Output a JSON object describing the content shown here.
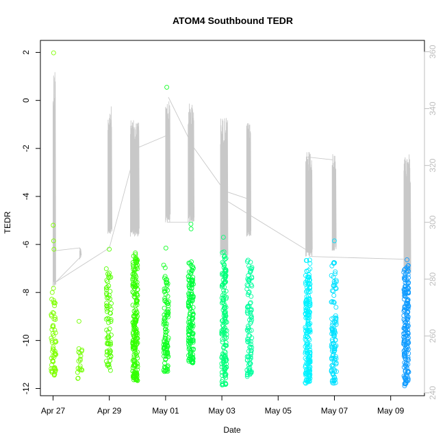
{
  "chart_data": {
    "type": "scatter",
    "title": "ATOM4 Southbound TEDR",
    "xlabel": "Date",
    "ylabel": "TEDR",
    "x_ticks": [
      "Apr 27",
      "Apr 29",
      "May 01",
      "May 03",
      "May 05",
      "May 07",
      "May 09"
    ],
    "x_tick_days": [
      0,
      2,
      4,
      6,
      8,
      10,
      12
    ],
    "xlim_days": [
      -0.45,
      13.2
    ],
    "y_ticks": [
      "-12",
      "-10",
      "-8",
      "-6",
      "-4",
      "-2",
      "0",
      "2"
    ],
    "y_tick_values": [
      -12,
      -10,
      -8,
      -6,
      -4,
      -2,
      0,
      2
    ],
    "ylim": [
      -12.3,
      2.5
    ],
    "y2_ticks": [
      "240",
      "260",
      "280",
      "300",
      "320",
      "340",
      "360"
    ],
    "y2_tick_values": [
      240,
      260,
      280,
      300,
      320,
      340,
      360
    ],
    "y2lim": [
      239,
      364
    ],
    "secondary_line_color": "#c8c8c8",
    "right_axis_color": "#bdbdbd",
    "point_groups": [
      {
        "day": 0.02,
        "color": "#7fff00",
        "count": 60,
        "min": -11.5,
        "max": -7.8,
        "outliers": [
          1.98,
          -5.2,
          -5.85,
          -6.2
        ]
      },
      {
        "day": 0.95,
        "color": "#72ff00",
        "count": 18,
        "min": -11.7,
        "max": -10.3,
        "outliers": [
          -9.2
        ]
      },
      {
        "day": 1.98,
        "color": "#54ff00",
        "count": 70,
        "min": -11.4,
        "max": -7.0,
        "outliers": [
          -6.2
        ]
      },
      {
        "day": 2.92,
        "color": "#33ff00",
        "count": 200,
        "min": -11.8,
        "max": -6.3,
        "outliers": []
      },
      {
        "day": 4.02,
        "color": "#11ff22",
        "count": 110,
        "min": -11.3,
        "max": -6.8,
        "outliers": [
          0.55,
          -6.15
        ]
      },
      {
        "day": 4.9,
        "color": "#00ff3c",
        "count": 150,
        "min": -11.0,
        "max": -6.6,
        "outliers": [
          -5.15,
          -5.35
        ]
      },
      {
        "day": 6.08,
        "color": "#00ff7a",
        "count": 150,
        "min": -11.9,
        "max": -6.3,
        "outliers": [
          -5.7
        ]
      },
      {
        "day": 6.98,
        "color": "#00ff9e",
        "count": 100,
        "min": -11.5,
        "max": -6.6,
        "outliers": []
      },
      {
        "day": 9.05,
        "color": "#00f2ff",
        "count": 190,
        "min": -11.8,
        "max": -6.6,
        "outliers": []
      },
      {
        "day": 9.98,
        "color": "#00e0ff",
        "count": 110,
        "min": -11.8,
        "max": -6.7,
        "outliers": [
          -5.85
        ]
      },
      {
        "day": 12.55,
        "color": "#0f9bff",
        "count": 180,
        "min": -11.9,
        "max": -6.6,
        "outliers": []
      }
    ],
    "secondary_bursts": [
      {
        "start": 0.0,
        "end": 0.08,
        "low": 277,
        "high": 355
      },
      {
        "start": 0.95,
        "end": 0.99,
        "low": 287,
        "high": 291
      },
      {
        "start": 1.95,
        "end": 2.08,
        "low": 296,
        "high": 341
      },
      {
        "start": 2.75,
        "end": 3.05,
        "low": 295,
        "high": 336
      },
      {
        "start": 4.0,
        "end": 4.15,
        "low": 300,
        "high": 343
      },
      {
        "start": 4.8,
        "end": 5.0,
        "low": 300,
        "high": 342
      },
      {
        "start": 5.95,
        "end": 6.2,
        "low": 288,
        "high": 337
      },
      {
        "start": 6.88,
        "end": 7.02,
        "low": 295,
        "high": 335
      },
      {
        "start": 8.98,
        "end": 9.2,
        "low": 288,
        "high": 326
      },
      {
        "start": 9.92,
        "end": 10.05,
        "low": 290,
        "high": 324
      },
      {
        "start": 12.47,
        "end": 12.7,
        "low": 282,
        "high": 324
      }
    ],
    "secondary_connectors": [
      [
        [
          0.08,
          290
        ],
        [
          0.95,
          291
        ],
        [
          0.99,
          288
        ],
        [
          0.1,
          279
        ]
      ],
      [
        [
          0.1,
          279
        ],
        [
          2.0,
          291
        ],
        [
          2.95,
          326
        ],
        [
          4.15,
          331
        ]
      ],
      [
        [
          4.05,
          300
        ],
        [
          4.85,
          300
        ],
        [
          4.9,
          328
        ],
        [
          4.1,
          344
        ]
      ],
      [
        [
          4.95,
          327
        ],
        [
          6.1,
          311
        ],
        [
          7.0,
          308
        ],
        [
          7.0,
          306
        ]
      ],
      [
        [
          6.1,
          308
        ],
        [
          9.05,
          290
        ],
        [
          9.0,
          323
        ],
        [
          9.95,
          322
        ]
      ],
      [
        [
          9.1,
          288
        ],
        [
          12.5,
          287
        ]
      ]
    ]
  }
}
